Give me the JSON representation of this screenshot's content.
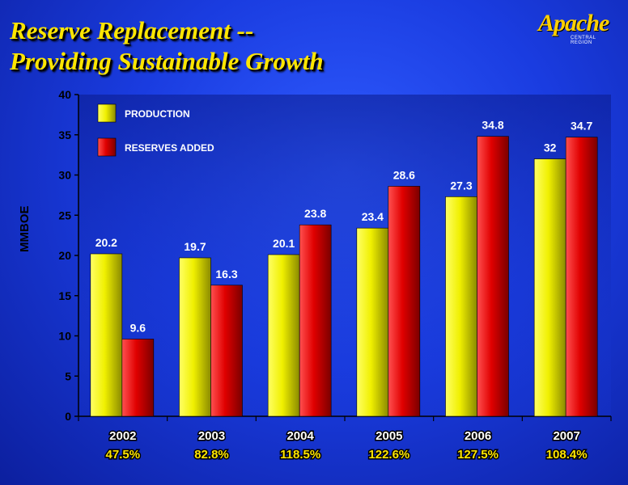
{
  "title_line1": "Reserve Replacement --",
  "title_line2": "Providing Sustainable Growth",
  "logo": {
    "word": "Apache",
    "sub": "CENTRAL REGION"
  },
  "colors": {
    "production": "#f0f000",
    "reserves": "#e00000",
    "title": "#ffe600"
  },
  "chart_data": {
    "type": "bar",
    "ylabel": "MMBOE",
    "ylim": [
      0,
      40
    ],
    "yticks": [
      0,
      5,
      10,
      15,
      20,
      25,
      30,
      35,
      40
    ],
    "categories": [
      "2002",
      "2003",
      "2004",
      "2005",
      "2006",
      "2007"
    ],
    "percentages": [
      "47.5%",
      "82.8%",
      "118.5%",
      "122.6%",
      "127.5%",
      "108.4%"
    ],
    "series": [
      {
        "name": "PRODUCTION",
        "values": [
          20.2,
          19.7,
          20.1,
          23.4,
          27.3,
          32
        ]
      },
      {
        "name": "RESERVES ADDED",
        "values": [
          9.6,
          16.3,
          23.8,
          28.6,
          34.8,
          34.7
        ]
      }
    ],
    "value_labels": [
      [
        "20.2",
        "19.7",
        "20.1",
        "23.4",
        "27.3",
        "32"
      ],
      [
        "9.6",
        "16.3",
        "23.8",
        "28.6",
        "34.8",
        "34.7"
      ]
    ],
    "legend_position": "top-left",
    "grid": false
  }
}
